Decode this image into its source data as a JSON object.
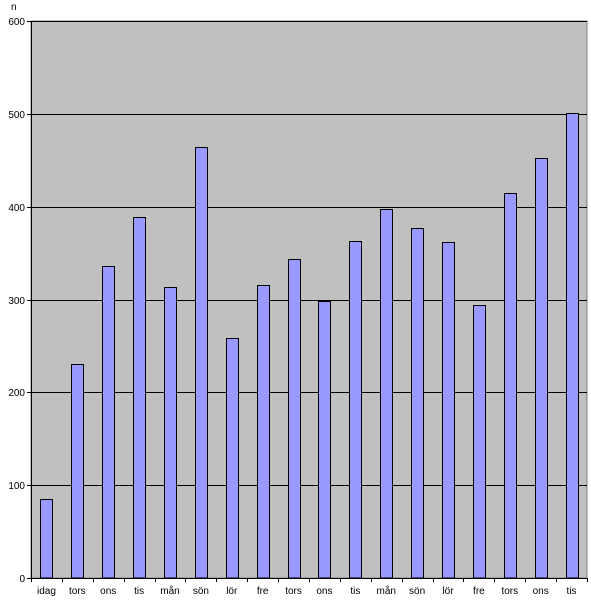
{
  "chart_data": {
    "type": "bar",
    "title": "",
    "xlabel": "",
    "ylabel": "n",
    "ylim": [
      0,
      600
    ],
    "yticks": [
      0,
      100,
      200,
      300,
      400,
      500,
      600
    ],
    "grid": true,
    "legend": "none",
    "categories": [
      "idag",
      "tors",
      "ons",
      "tis",
      "mån",
      "sön",
      "lör",
      "fre",
      "tors",
      "ons",
      "tis",
      "mån",
      "sön",
      "lör",
      "fre",
      "tors",
      "ons",
      "tis"
    ],
    "values": [
      85,
      231,
      336,
      389,
      313,
      464,
      259,
      316,
      344,
      298,
      363,
      398,
      377,
      362,
      294,
      415,
      452,
      501
    ],
    "colors": {
      "plot_background": "#c0c0c0",
      "bar_fill": "#9999ff",
      "bar_stroke": "#000000",
      "gridline": "#000000"
    }
  }
}
